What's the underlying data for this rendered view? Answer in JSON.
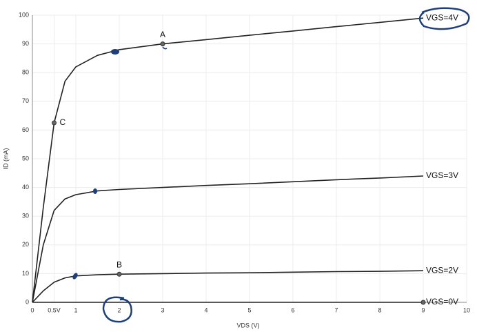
{
  "chart_data": {
    "type": "line",
    "x_label": "VDS (V)",
    "y_label": "ID (mA)",
    "x": [
      0,
      0.25,
      0.5,
      0.75,
      1,
      1.5,
      2,
      3,
      4,
      5,
      6,
      7,
      8,
      9
    ],
    "series": [
      {
        "name": "VGS=4V",
        "color": "#222222",
        "values": [
          0,
          33,
          62.5,
          77,
          82,
          86,
          88,
          90,
          91.5,
          93,
          94.5,
          96,
          97.5,
          99
        ]
      },
      {
        "name": "VGS=3V",
        "color": "#222222",
        "values": [
          0,
          20,
          32,
          36,
          37.5,
          38.8,
          39.3,
          40,
          40.7,
          41.3,
          42,
          42.7,
          43.3,
          44
        ]
      },
      {
        "name": "VGS=2V",
        "color": "#222222",
        "values": [
          0,
          4,
          7,
          8.5,
          9.2,
          9.6,
          9.8,
          10,
          10.2,
          10.3,
          10.5,
          10.7,
          10.8,
          11
        ]
      },
      {
        "name": "VGS=0V",
        "color": "#222222",
        "values": [
          0,
          0,
          0,
          0,
          0,
          0,
          0,
          0,
          0,
          0,
          0,
          0,
          0,
          0
        ]
      }
    ],
    "points": [
      {
        "label": "A",
        "x": 3,
        "y": 90
      },
      {
        "label": "B",
        "x": 2,
        "y": 9.8
      },
      {
        "label": "C",
        "x": 0.5,
        "y": 62.5
      },
      {
        "x": 9,
        "y": 0
      }
    ],
    "xlim": [
      0,
      10
    ],
    "ylim": [
      0,
      100
    ],
    "xticks": [
      0,
      {
        "value": 0.5,
        "label": "0.5V"
      },
      1,
      2,
      3,
      4,
      5,
      6,
      7,
      8,
      9,
      10
    ],
    "yticks": [
      0,
      10,
      20,
      30,
      40,
      50,
      60,
      70,
      80,
      90,
      100
    ],
    "grid": true
  }
}
